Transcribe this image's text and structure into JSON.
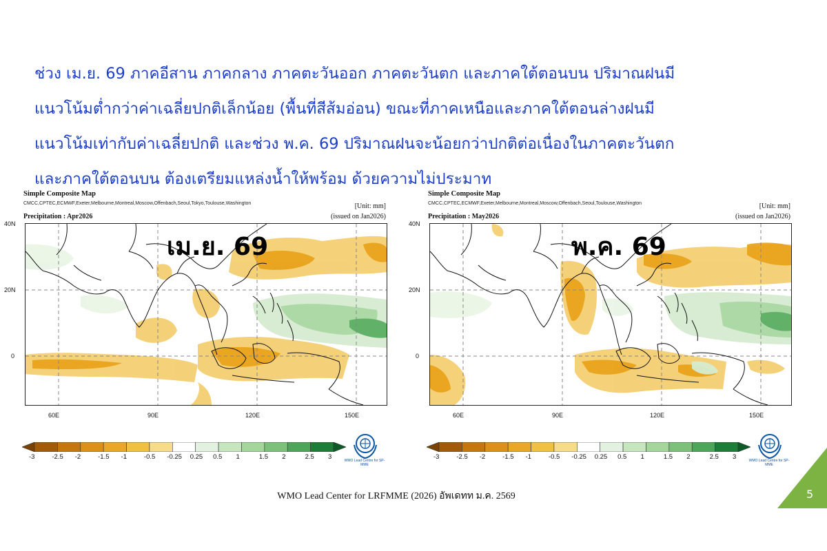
{
  "heading": {
    "lines": [
      "ช่วง เม.ย. 69 ภาคอีสาน ภาคกลาง ภาคตะวันออก ภาคตะวันตก และภาคใต้ตอนบน ปริมาณฝนมี",
      "แนวโน้มต่ำกว่าค่าเฉลี่ยปกติเล็กน้อย (พื้นที่สีส้มอ่อน) ขณะที่ภาคเหนือและภาคใต้ตอนล่างฝนมี",
      "แนวโน้มเท่ากับค่าเฉลี่ยปกติ และช่วง พ.ค. 69 ปริมาณฝนจะน้อยกว่าปกติต่อเนื่องในภาคตะวันตก",
      "และภาคใต้ตอนบน ต้องเตรียมแหล่งน้ำให้พร้อม ด้วยความไม่ประมาท"
    ]
  },
  "maps": [
    {
      "title": "Simple Composite Map",
      "models": "CMCC,CPTEC,ECMWF,Exeter,Melbourne,Montreal,Moscow,Offenbach,Seoul,Tokyo,Toulouse,Washington",
      "unit": "[Unit: mm]",
      "variable": "Precipitation : Apr2026",
      "issued": "(issued on Jan2026)",
      "period_label": "เม.ย. 69"
    },
    {
      "title": "Simple Composite Map",
      "models": "CMCC,CPTEC,ECMWF,Exeter,Melbourne,Montreal,Moscow,Offenbach,Seoul,Toulouse,Washington",
      "unit": "[Unit: mm]",
      "variable": "Precipitation : May2026",
      "issued": "(issued on Jan2026)",
      "period_label": "พ.ค. 69"
    }
  ],
  "axes": {
    "lat_labels": [
      "40N",
      "20N",
      "0"
    ],
    "lon_labels": [
      "60E",
      "90E",
      "120E",
      "150E"
    ]
  },
  "colorbar": {
    "ticks": [
      "-3",
      "-2.5",
      "-2",
      "-1.5",
      "-1",
      "-0.5",
      "-0.25",
      "0.25",
      "0.5",
      "1",
      "1.5",
      "2",
      "2.5",
      "3"
    ],
    "colors": [
      "#7a4306",
      "#a05c08",
      "#c4780c",
      "#db9118",
      "#e8a825",
      "#f0c040",
      "#f6dc8a",
      "#ffffff",
      "#e3f2e0",
      "#c7e6c0",
      "#a4d59b",
      "#7cc079",
      "#4ea55a",
      "#1f7d3a",
      "#0e5a26"
    ]
  },
  "logo": {
    "caption": "WMO Lead Centre for SP-MME",
    "name": "wmo-emblem-icon"
  },
  "footer": "WMO Lead Center for LRFMME (2026) อัพเดทท ม.ค. 2569",
  "page_number": "5",
  "accent_color": "#7cb342"
}
